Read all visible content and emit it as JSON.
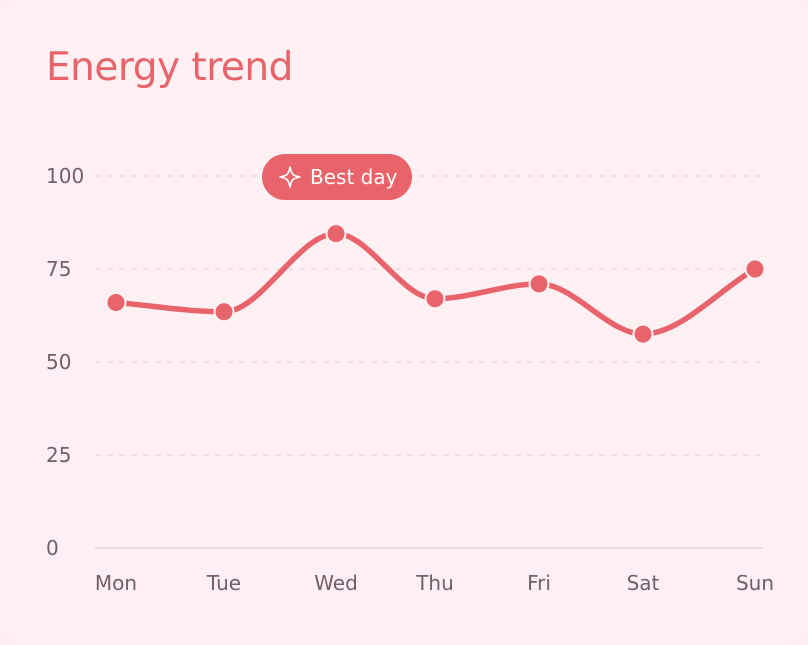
{
  "colors": {
    "accent": "#e8636a",
    "background": "#fff0f3",
    "grid": "#dcd0d3",
    "axis_text": "#6f6264",
    "badge_text": "#ffffff"
  },
  "chart_data": {
    "type": "line",
    "title": "Energy trend",
    "categories": [
      "Mon",
      "Tue",
      "Wed",
      "Thu",
      "Fri",
      "Sat",
      "Sun"
    ],
    "values": [
      66,
      63.5,
      84.5,
      67,
      71,
      57.5,
      75
    ],
    "ylim": [
      0,
      100
    ],
    "yticks": [
      0,
      25,
      50,
      75,
      100
    ],
    "grid": true,
    "annotation": {
      "label": "Best day",
      "icon": "sparkle-icon",
      "category": "Wed"
    }
  }
}
